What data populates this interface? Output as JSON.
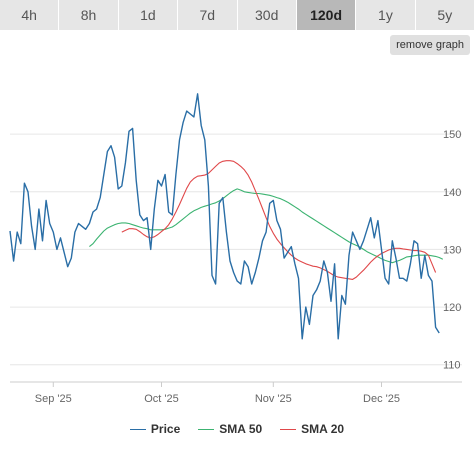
{
  "ranges": {
    "tabs": [
      {
        "label": "4h",
        "active": false
      },
      {
        "label": "8h",
        "active": false
      },
      {
        "label": "1d",
        "active": false
      },
      {
        "label": "7d",
        "active": false
      },
      {
        "label": "30d",
        "active": false
      },
      {
        "label": "120d",
        "active": true
      },
      {
        "label": "1y",
        "active": false
      },
      {
        "label": "5y",
        "active": false
      }
    ]
  },
  "toolbar": {
    "remove_label": "remove graph"
  },
  "chart_data": {
    "type": "line",
    "x_tick_labels": [
      "Sep '25",
      "Oct '25",
      "Nov '25",
      "Dec '25"
    ],
    "x_tick_positions": [
      4,
      34,
      65,
      95
    ],
    "x_range": [
      -8,
      109
    ],
    "y_ticks": [
      110,
      120,
      130,
      140,
      150
    ],
    "ylim": [
      107,
      162
    ],
    "grid": true,
    "legend": "bottom",
    "series": [
      {
        "name": "Price",
        "color": "#2a6ea6",
        "values": [
          133.2,
          128,
          133,
          131,
          141.5,
          140,
          134,
          130,
          137,
          131.5,
          138.5,
          134.5,
          133,
          130,
          132,
          129.5,
          127,
          128.5,
          133,
          134.5,
          134,
          133.5,
          134.5,
          136.5,
          137,
          139,
          143,
          147,
          148,
          146,
          140.5,
          141,
          145,
          150.5,
          151,
          142,
          136,
          135,
          135.5,
          130,
          137,
          142,
          141,
          143,
          136.5,
          136,
          143,
          149,
          152,
          154,
          153.5,
          153,
          157,
          151.5,
          149,
          141,
          125.5,
          124,
          138,
          139,
          133,
          128,
          126,
          124.5,
          124,
          128,
          127,
          124,
          126,
          128.5,
          131.5,
          133,
          138,
          138.5,
          135,
          133.5,
          128.5,
          129.5,
          130.5,
          127.5,
          125,
          114.5,
          120,
          117,
          122,
          123,
          124.5,
          128,
          126,
          121,
          127.5,
          114.5,
          122,
          120.5,
          129,
          133,
          131.5,
          130,
          131.5,
          133.5,
          135.5,
          132,
          135,
          130,
          125,
          124,
          131.5,
          128.5,
          125,
          125,
          124.5,
          127.5,
          131.5,
          131,
          125,
          129,
          125.5,
          124.5,
          116.5,
          115.5
        ],
        "x_start": -8
      },
      {
        "name": "SMA 50",
        "color": "#3cb371",
        "values": [
          130.5,
          131,
          131.8,
          132.5,
          133.2,
          133.7,
          134,
          134.3,
          134.5,
          134.6,
          134.6,
          134.5,
          134.3,
          134.1,
          133.9,
          133.7,
          133.6,
          133.4,
          133.4,
          133.4,
          133.4,
          133.5,
          133.7,
          133.9,
          134.3,
          134.8,
          135.3,
          135.8,
          136.3,
          136.7,
          137,
          137.3,
          137.5,
          137.7,
          137.9,
          138.1,
          138.4,
          138.8,
          139.3,
          139.8,
          140.2,
          140.5,
          140.3,
          140,
          139.9,
          139.8,
          139.7,
          139.7,
          139.6,
          139.5,
          139.4,
          139.2,
          139,
          138.8,
          138.5,
          138.2,
          137.8,
          137.4,
          137,
          136.5,
          136.1,
          135.7,
          135.3,
          134.9,
          134.5,
          134.1,
          133.7,
          133.3,
          132.9,
          132.5,
          132.1,
          131.7,
          131.3,
          131,
          130.7,
          130.4,
          130,
          129.6,
          129.3,
          129,
          128.7,
          128.4,
          128.1,
          127.9,
          127.7,
          127.9,
          128.1,
          128.4,
          128.7,
          128.8,
          128.9,
          129,
          129,
          129,
          129,
          128.9,
          128.8,
          128.6,
          128.3
        ],
        "x_start": 14
      },
      {
        "name": "SMA 20",
        "color": "#e0484a",
        "values": [
          133,
          133.3,
          133.6,
          133.6,
          133.5,
          133.1,
          132.6,
          132.2,
          132,
          132.2,
          132.6,
          133.1,
          133.6,
          134.3,
          135.3,
          136.5,
          137.8,
          139.2,
          140.6,
          141.7,
          142.3,
          142.7,
          142.8,
          142.9,
          143.2,
          143.8,
          144.4,
          145,
          145.3,
          145.4,
          145.4,
          145.3,
          144.9,
          144.4,
          143.8,
          142.9,
          141.7,
          140.2,
          138.7,
          137.1,
          135.5,
          134,
          132.8,
          131.8,
          131,
          130.3,
          129.6,
          129,
          128.5,
          128.1,
          127.8,
          127.5,
          127.3,
          127.1,
          127,
          126.8,
          126.5,
          126.2,
          125.8,
          125.4,
          125.2,
          125.1,
          125,
          124.9,
          124.8,
          125.2,
          125.8,
          126.4,
          127.1,
          127.8,
          128.4,
          128.9,
          129.3,
          129.6,
          129.9,
          130.1,
          130.2,
          130.2,
          130.1,
          130,
          129.9,
          129.8,
          129.8,
          129.7,
          129.5,
          129,
          127.5,
          126
        ],
        "x_start": 23
      }
    ]
  }
}
